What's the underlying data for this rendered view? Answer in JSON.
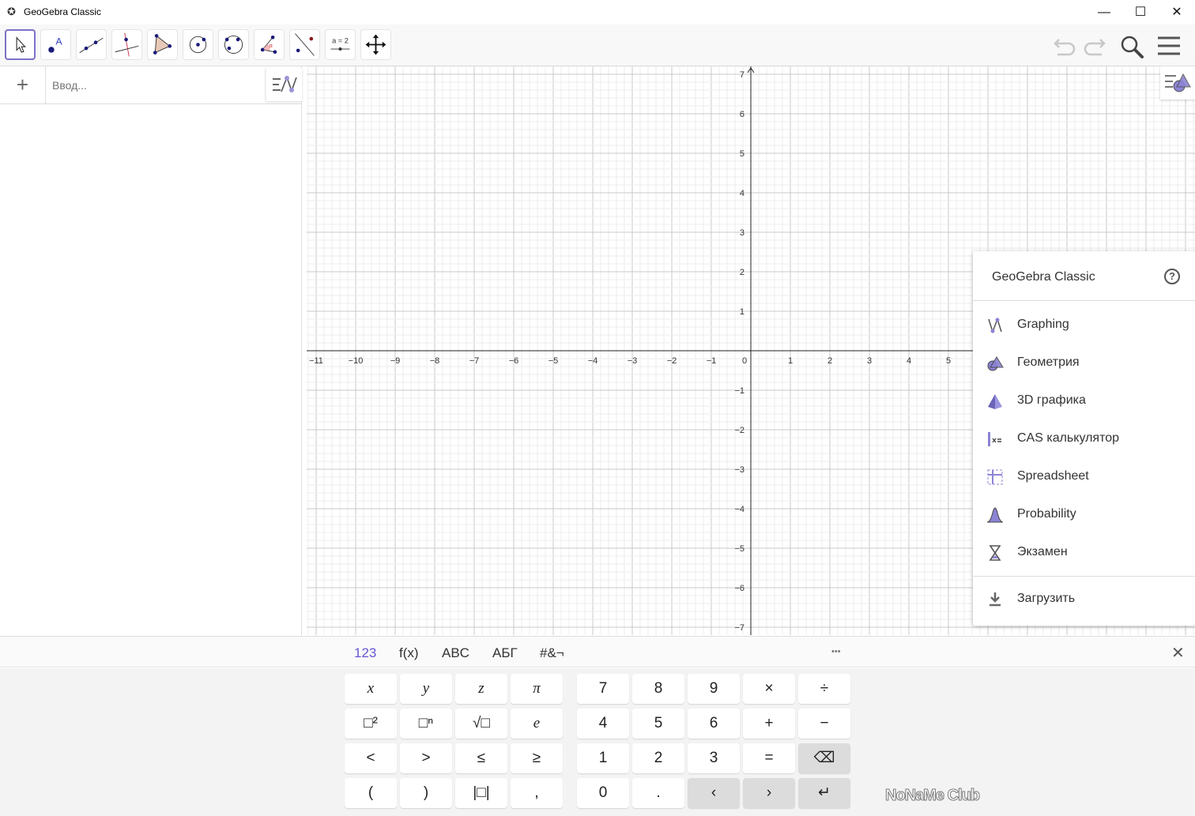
{
  "window": {
    "title": "GeoGebra Classic",
    "minimize": "—",
    "maximize": "☐",
    "close": "✕"
  },
  "toolbar": {
    "tools": [
      "move-tool",
      "point-tool",
      "line-tool",
      "perpendicular-line-tool",
      "polygon-tool",
      "circle-center-point-tool",
      "circle-three-points-tool",
      "angle-tool",
      "reflect-about-line-tool",
      "slider-tool",
      "move-graphics-view-tool"
    ],
    "selected": "move-tool",
    "slider_label": "a = 2"
  },
  "algebra": {
    "add": "+",
    "input_placeholder": "Ввод..."
  },
  "graphics": {
    "x_ticks": [
      "−11",
      "−10",
      "−9",
      "−8",
      "−7",
      "−6",
      "−5",
      "−4",
      "−3",
      "−2",
      "−1",
      "0",
      "1",
      "2",
      "3",
      "4",
      "5"
    ],
    "y_ticks": [
      "7",
      "6",
      "5",
      "4",
      "3",
      "2",
      "1",
      "−1",
      "−2",
      "−3",
      "−4",
      "−5",
      "−6",
      "−7"
    ]
  },
  "menu": {
    "title": "GeoGebra Classic",
    "help": "?",
    "items": [
      {
        "label": "Graphing",
        "icon": "graphing-icon"
      },
      {
        "label": "Геометрия",
        "icon": "geometry-icon"
      },
      {
        "label": "3D графика",
        "icon": "3d-icon"
      },
      {
        "label": "CAS калькулятор",
        "icon": "cas-icon"
      },
      {
        "label": "Spreadsheet",
        "icon": "spreadsheet-icon"
      },
      {
        "label": "Probability",
        "icon": "probability-icon"
      },
      {
        "label": "Экзамен",
        "icon": "exam-icon"
      }
    ],
    "download": "Загрузить",
    "accent": "#7b72c9"
  },
  "keyboard": {
    "tabs": [
      "123",
      "f(x)",
      "ABC",
      "АБГ",
      "#&¬"
    ],
    "active_tab": "123",
    "more": "•••",
    "close": "✕",
    "left": [
      [
        "x",
        "y",
        "z",
        "π"
      ],
      [
        "□²",
        "□ⁿ",
        "√□",
        "e"
      ],
      [
        "<",
        ">",
        "≤",
        "≥"
      ],
      [
        "(",
        ")",
        "|□|",
        ","
      ]
    ],
    "right": [
      [
        "7",
        "8",
        "9",
        "×",
        "÷"
      ],
      [
        "4",
        "5",
        "6",
        "+",
        "−"
      ],
      [
        "1",
        "2",
        "3",
        "=",
        "⌫"
      ],
      [
        "0",
        ".",
        "‹",
        "›",
        "↵"
      ]
    ]
  },
  "watermark": "NoNaMe Club"
}
